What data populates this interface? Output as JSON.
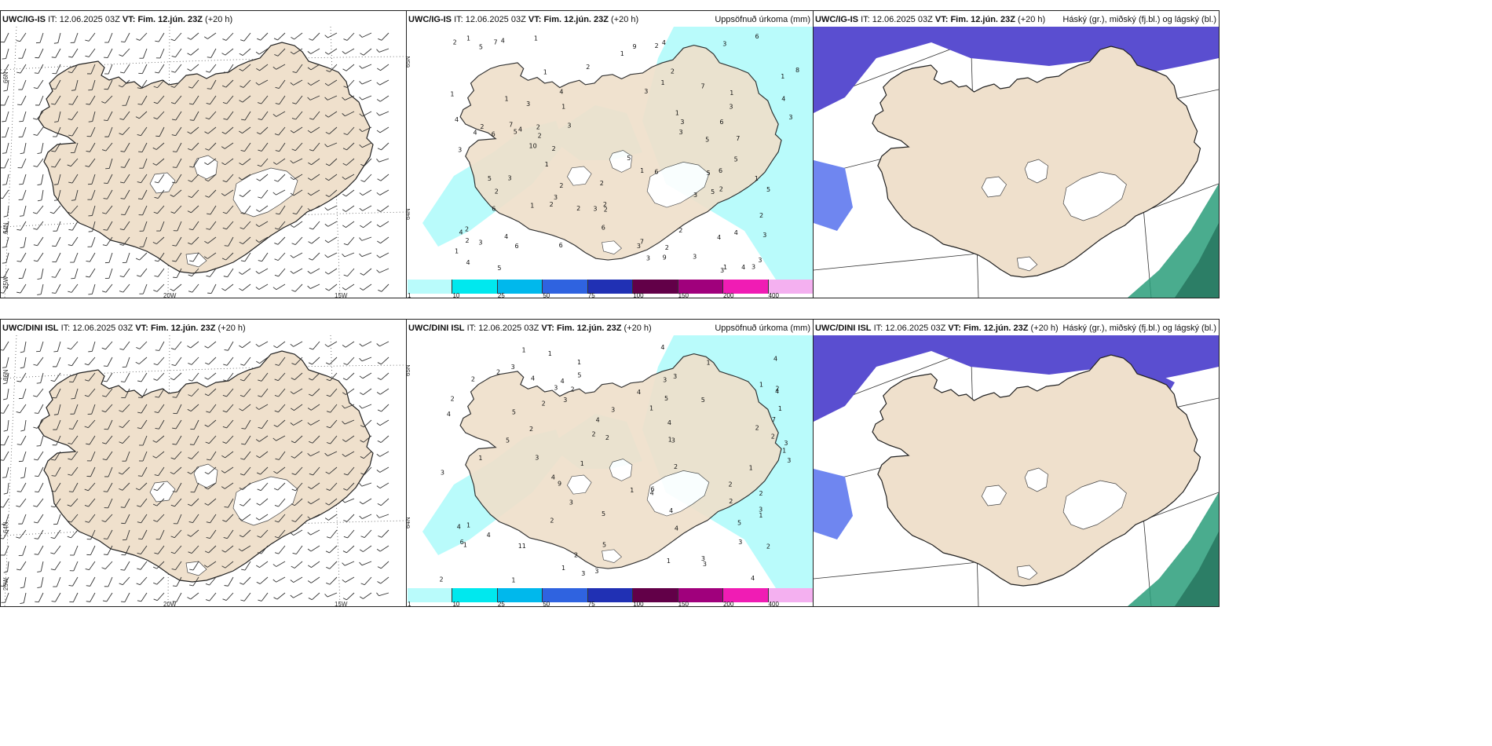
{
  "panels": {
    "wind_top": {
      "model": "UWC/IG-IS",
      "it_label": "IT:",
      "it": "12.06.2025 03Z",
      "vt_label": "VT:",
      "vt": "Fim. 12.jún. 23Z",
      "lead": "(+20 h)"
    },
    "precip_top": {
      "model": "UWC/IG-IS",
      "it_label": "IT:",
      "it": "12.06.2025 03Z",
      "vt_label": "VT:",
      "vt": "Fim. 12.jún. 23Z",
      "lead": "(+20 h)",
      "title": "Uppsöfnuð úrkoma (mm)"
    },
    "cloud_top": {
      "model": "UWC/IG-IS",
      "it_label": "IT:",
      "it": "12.06.2025 03Z",
      "vt_label": "VT:",
      "vt": "Fim. 12.jún. 23Z",
      "lead": "(+20 h)",
      "title": "Háský (gr.), miðský (fj.bl.) og lágský (bl.)"
    },
    "wind_bot": {
      "model": "UWC/DINI ISL",
      "it_label": "IT:",
      "it": "12.06.2025 03Z",
      "vt_label": "VT:",
      "vt": "Fim. 12.jún. 23Z",
      "lead": "(+20 h)"
    },
    "precip_bot": {
      "model": "UWC/DINI ISL",
      "it_label": "IT:",
      "it": "12.06.2025 03Z",
      "vt_label": "VT:",
      "vt": "Fim. 12.jún. 23Z",
      "lead": "(+20 h)",
      "title": "Uppsöfnuð úrkoma (mm)"
    },
    "cloud_bot": {
      "model": "UWC/DINI ISL",
      "it_label": "IT:",
      "it": "12.06.2025 03Z",
      "vt_label": "VT:",
      "vt": "Fim. 12.jún. 23Z",
      "lead": "(+20 h)",
      "title": "Háský (gr.), miðský (fj.bl.) og lágský (bl.)"
    }
  },
  "grid_labels": {
    "lat66": "66N",
    "lat64": "64N",
    "lon25": "25W",
    "lon20": "20W",
    "lon15": "15W"
  },
  "colorbar": {
    "labels": [
      "1",
      "10",
      "25",
      "50",
      "75",
      "100",
      "150",
      "200",
      "400"
    ],
    "colors": [
      "#b9fbfb",
      "#00e8ee",
      "#00b8ec",
      "#2f63e0",
      "#2030b4",
      "#620048",
      "#a0007c",
      "#f01cb4",
      "#f4b0f0"
    ]
  },
  "colors": {
    "land": "#efe0cc",
    "sea": "#ffffff",
    "precip_light": "#b9fbfb",
    "cloud_mid": "#5a4ed0",
    "cloud_low": "#6f86f0",
    "cloud_high": "#2a9e7a"
  },
  "precip_numbers_top": [
    "2",
    "5",
    "7",
    "6",
    "3",
    "1",
    "3",
    "1",
    "2",
    "5",
    "7",
    "9",
    "2",
    "1",
    "2",
    "2",
    "5",
    "3",
    "1",
    "3",
    "4",
    "4",
    "2",
    "1",
    "4",
    "3",
    "3",
    "2",
    "1",
    "4",
    "3",
    "2",
    "3",
    "2",
    "7",
    "4",
    "2",
    "4",
    "3",
    "6",
    "3",
    "3",
    "1",
    "3",
    "2",
    "2",
    "2",
    "3",
    "1",
    "2",
    "3",
    "6",
    "6",
    "3",
    "4",
    "1",
    "6",
    "5",
    "6",
    "4",
    "2",
    "2",
    "1",
    "5",
    "4",
    "4",
    "6",
    "3",
    "3",
    "2",
    "5",
    "7",
    "6",
    "3",
    "3",
    "7",
    "5",
    "6",
    "8",
    "3",
    "2",
    "4",
    "5",
    "1",
    "2",
    "5",
    "1",
    "1",
    "1",
    "2",
    "4",
    "9",
    "10",
    "3",
    "4",
    "2",
    "1",
    "5",
    "1",
    "1"
  ],
  "precip_numbers_bot": [
    "3",
    "4",
    "5",
    "4",
    "2",
    "2",
    "1",
    "1",
    "1",
    "2",
    "4",
    "3",
    "9",
    "4",
    "2",
    "5",
    "2",
    "6",
    "3",
    "4",
    "5",
    "7",
    "4",
    "11",
    "4",
    "2",
    "4",
    "5",
    "4",
    "4",
    "3",
    "5",
    "3",
    "1",
    "3",
    "2",
    "4",
    "5",
    "4",
    "1",
    "2",
    "1",
    "3",
    "3",
    "3",
    "3",
    "1",
    "2",
    "1",
    "4",
    "1",
    "1",
    "3",
    "3",
    "1",
    "2",
    "2",
    "2",
    "3",
    "2",
    "1",
    "4",
    "2",
    "3",
    "3",
    "6",
    "4",
    "5",
    "3",
    "3",
    "1",
    "1",
    "4",
    "1",
    "1",
    "3",
    "2",
    "2",
    "1",
    "2",
    "2",
    "1",
    "2",
    "5",
    "1"
  ]
}
